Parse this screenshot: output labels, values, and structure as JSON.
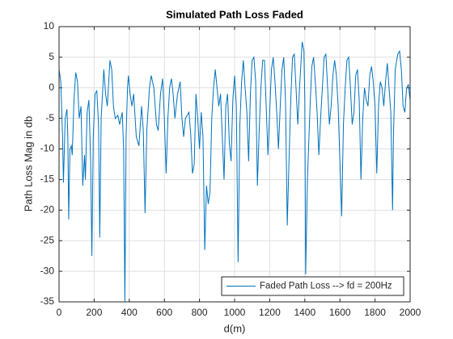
{
  "chart_data": {
    "type": "line",
    "title": "Simulated Path Loss Faded",
    "x_label": "d(m)",
    "y_label": "Path Loss Mag in db",
    "x": [
      0,
      10,
      20,
      25,
      35,
      45,
      50,
      55,
      62,
      70,
      75,
      85,
      95,
      105,
      115,
      125,
      135,
      145,
      150,
      160,
      170,
      180,
      187,
      195,
      205,
      215,
      225,
      232,
      240,
      255,
      265,
      275,
      290,
      300,
      310,
      320,
      335,
      345,
      360,
      368,
      375,
      382,
      390,
      395,
      405,
      415,
      425,
      440,
      455,
      470,
      480,
      490,
      500,
      515,
      525,
      540,
      555,
      565,
      578,
      590,
      600,
      610,
      620,
      630,
      640,
      650,
      660,
      675,
      690,
      700,
      710,
      720,
      740,
      750,
      760,
      770,
      780,
      790,
      800,
      810,
      820,
      830,
      840,
      850,
      860,
      870,
      880,
      890,
      900,
      910,
      920,
      930,
      940,
      950,
      960,
      970,
      980,
      990,
      1000,
      1010,
      1020,
      1030,
      1040,
      1050,
      1060,
      1070,
      1080,
      1090,
      1100,
      1110,
      1120,
      1130,
      1140,
      1150,
      1160,
      1170,
      1180,
      1190,
      1200,
      1210,
      1220,
      1230,
      1240,
      1250,
      1260,
      1270,
      1280,
      1290,
      1300,
      1310,
      1320,
      1330,
      1340,
      1350,
      1360,
      1370,
      1385,
      1395,
      1400,
      1405,
      1415,
      1430,
      1440,
      1450,
      1460,
      1470,
      1480,
      1490,
      1500,
      1510,
      1520,
      1530,
      1540,
      1550,
      1560,
      1570,
      1580,
      1590,
      1600,
      1610,
      1620,
      1630,
      1640,
      1650,
      1660,
      1670,
      1680,
      1690,
      1700,
      1710,
      1720,
      1730,
      1740,
      1750,
      1760,
      1770,
      1780,
      1790,
      1800,
      1810,
      1820,
      1830,
      1840,
      1850,
      1860,
      1870,
      1880,
      1890,
      1900,
      1905,
      1915,
      1930,
      1940,
      1950,
      1960,
      1970,
      1980,
      1990,
      2000
    ],
    "series": [
      {
        "name": "Faded Path Loss --> fd = 200Hz",
        "color": "#0072bd",
        "values": [
          3,
          1,
          -8,
          -15.5,
          -5,
          -3.5,
          -8,
          -21.5,
          -10,
          -9.5,
          -11,
          -2,
          2.5,
          1,
          -5,
          -3,
          -16,
          -11,
          -15,
          -4,
          -2,
          -12,
          -27.5,
          -8,
          -1,
          -0.5,
          -6,
          -24.5,
          -5,
          3,
          -1,
          -3,
          4.5,
          3,
          -3,
          -5,
          -4.5,
          -6,
          -4,
          -10,
          -35,
          -8,
          0,
          2,
          -1,
          -3,
          -1,
          -8,
          -9.5,
          -3,
          -7,
          -20.5,
          -7,
          0,
          2,
          0,
          -6,
          -7,
          -1,
          1.5,
          -5,
          -14,
          -5,
          0,
          1.5,
          -1,
          -5,
          -1,
          1,
          -5,
          -8,
          -5,
          -4,
          -7.5,
          -14,
          -12.5,
          -1,
          -5,
          -10,
          -4,
          -8,
          -26.5,
          -16,
          -19,
          -17,
          -5,
          0,
          3,
          0,
          -3,
          -1,
          -8,
          -15,
          -3,
          -1,
          -9,
          -12,
          -2,
          2,
          -3,
          -28.5,
          -6,
          1,
          4.5,
          0,
          -4,
          -12,
          -1,
          4.5,
          5,
          1,
          -16,
          -7,
          0,
          4.5,
          4.5,
          -3,
          -11,
          -4,
          3,
          5,
          1,
          -4,
          -10,
          -3,
          3,
          5,
          -2,
          -22.5,
          -12,
          -2,
          5,
          5.5,
          0,
          -6,
          0,
          7.5,
          6,
          -2,
          -30.5,
          -15,
          -3,
          3.5,
          5,
          1,
          -4,
          -11,
          -5,
          0,
          5,
          5.5,
          0,
          -6,
          -3,
          2,
          4.5,
          2,
          -3,
          -12,
          -21,
          -6,
          0,
          4.5,
          5,
          0,
          -6,
          -4,
          2,
          3,
          -2,
          -15,
          -5,
          0,
          -2,
          -3,
          2,
          3.5,
          1,
          -3,
          -14,
          -3,
          1,
          0,
          -3,
          1,
          4,
          0,
          -4,
          -20,
          -8,
          3,
          5.5,
          6,
          3,
          -3,
          -4,
          0,
          0.5,
          -2
        ]
      }
    ],
    "xlim": [
      0,
      2000
    ],
    "xticks": [
      0,
      200,
      400,
      600,
      800,
      1000,
      1200,
      1400,
      1600,
      1800,
      2000
    ],
    "ylim": [
      -35,
      10
    ],
    "yticks": [
      -35,
      -30,
      -25,
      -20,
      -15,
      -10,
      -5,
      0,
      5,
      10
    ],
    "grid": true,
    "legend": "lower right"
  }
}
